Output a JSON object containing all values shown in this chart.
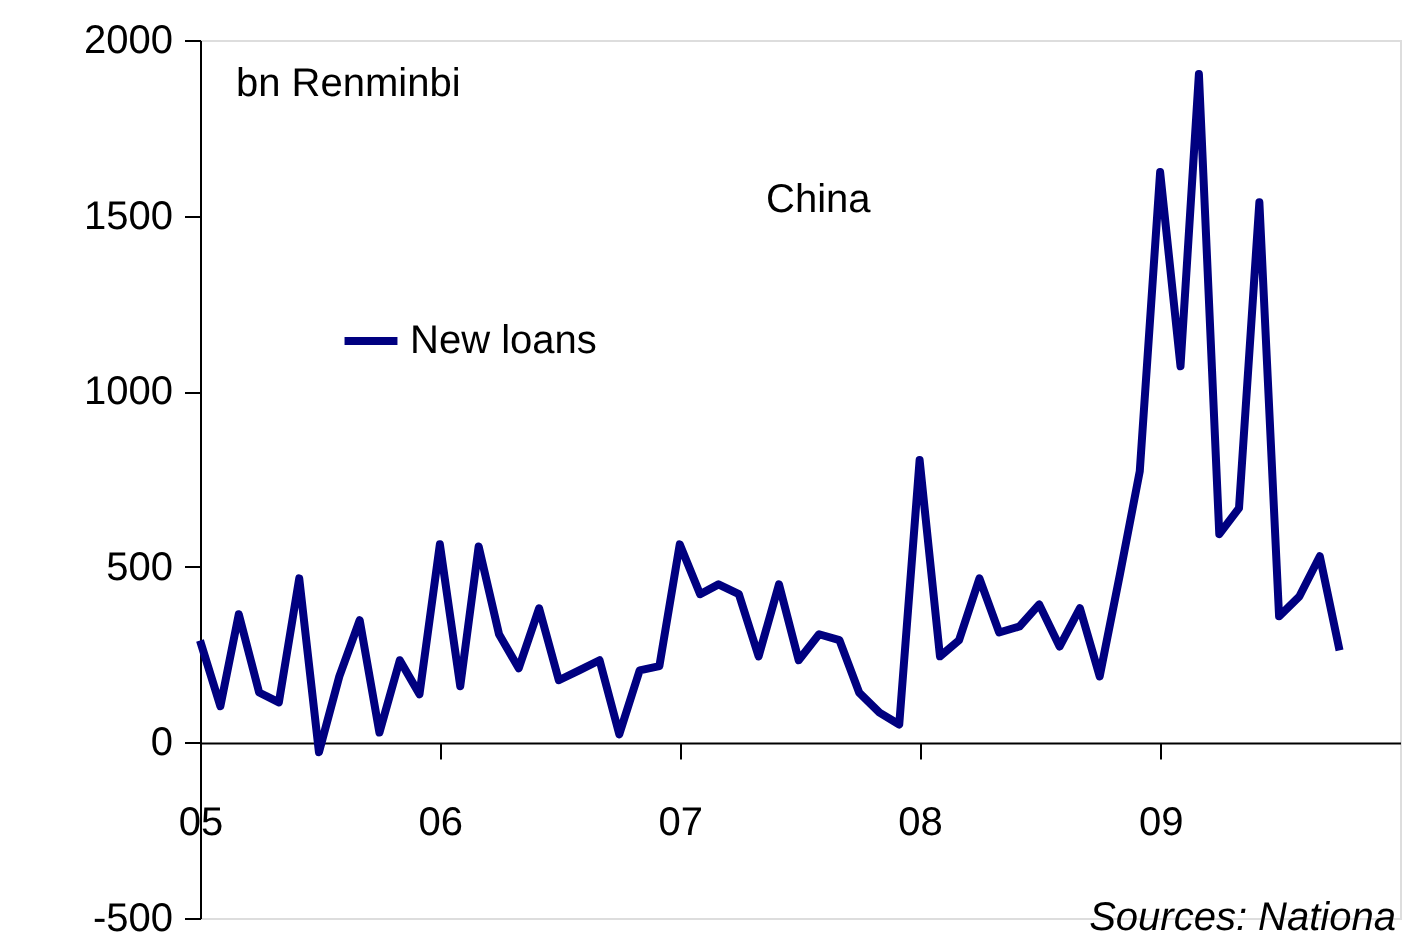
{
  "chart_data": {
    "type": "line",
    "title": "China",
    "ylabel": "bn Renminbi",
    "annotations": [
      "Sources: Nationa"
    ],
    "x": [
      "2005-01",
      "2005-02",
      "2005-03",
      "2005-04",
      "2005-05",
      "2005-06",
      "2005-07",
      "2005-08",
      "2005-09",
      "2005-10",
      "2005-11",
      "2005-12",
      "2006-01",
      "2006-02",
      "2006-03",
      "2006-04",
      "2006-05",
      "2006-06",
      "2006-07",
      "2006-08",
      "2006-09",
      "2006-10",
      "2006-11",
      "2006-12",
      "2007-01",
      "2007-02",
      "2007-03",
      "2007-04",
      "2007-05",
      "2007-06",
      "2007-07",
      "2007-08",
      "2007-09",
      "2007-10",
      "2007-11",
      "2007-12",
      "2008-01",
      "2008-02",
      "2008-03",
      "2008-04",
      "2008-05",
      "2008-06",
      "2008-07",
      "2008-08",
      "2008-09",
      "2008-10",
      "2008-11",
      "2008-12",
      "2009-01",
      "2009-02",
      "2009-03",
      "2009-04",
      "2009-05",
      "2009-06",
      "2009-07",
      "2009-08",
      "2009-09",
      "2009-10"
    ],
    "series": [
      {
        "name": "New loans",
        "color": "#000080",
        "values": [
          290,
          103,
          365,
          142,
          114,
          467,
          -28,
          188,
          348,
          28,
          234,
          137,
          564,
          160,
          558,
          308,
          211,
          382,
          177,
          205,
          234,
          23,
          205,
          217,
          564,
          422,
          450,
          422,
          245,
          450,
          234,
          308,
          291,
          142,
          85,
          51,
          804,
          245,
          291,
          467,
          313,
          330,
          393,
          273,
          382,
          188,
          480,
          772,
          1624,
          1071,
          1903,
          593,
          667,
          1538,
          359,
          416,
          530,
          262
        ]
      }
    ],
    "xlim": [
      "2005-01",
      "2010-01"
    ],
    "xticks": [
      {
        "value": "2005-01",
        "label": "05"
      },
      {
        "value": "2006-01",
        "label": "06"
      },
      {
        "value": "2007-01",
        "label": "07"
      },
      {
        "value": "2008-01",
        "label": "08"
      },
      {
        "value": "2009-01",
        "label": "09"
      }
    ],
    "ylim": [
      -500,
      2000
    ],
    "yticks": [
      -500,
      0,
      500,
      1000,
      1500,
      2000
    ],
    "grid": false,
    "legend": "top left",
    "marker": "none",
    "line_style": "solid"
  }
}
